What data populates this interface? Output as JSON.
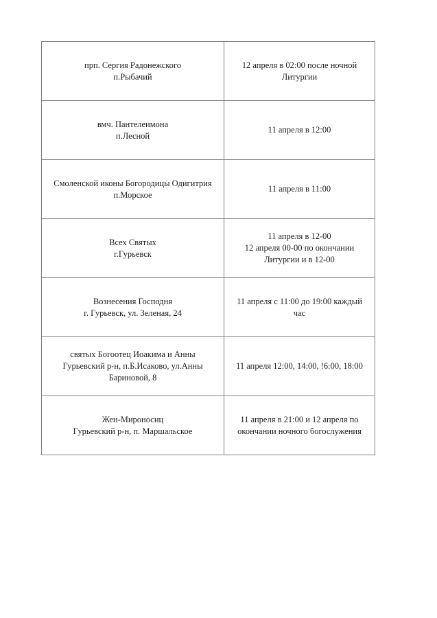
{
  "page": {
    "background_color": "#ffffff",
    "text_color": "#1f1f1f"
  },
  "table": {
    "border_color": "#7f7f7f",
    "rows": [
      {
        "church_lines": [
          "прп. Сергия Радонежского",
          "п.Рыбачий"
        ],
        "time_lines": [
          "12 апреля в 02:00 после ночной",
          "Литургии"
        ]
      },
      {
        "church_lines": [
          "вмч. Пантелеимона",
          "п.Лесной"
        ],
        "time_lines": [
          "11 апреля в 12:00"
        ]
      },
      {
        "church_lines": [
          "Смоленской иконы Богородицы Одигитрия",
          "п.Морское"
        ],
        "time_lines": [
          "11 апреля в 11:00"
        ]
      },
      {
        "church_lines": [
          "Всех Святых",
          "г.Гурьевск"
        ],
        "time_lines": [
          "11 апреля в 12-00",
          "12 апреля 00-00 по окончании",
          "Литургии и в 12-00"
        ]
      },
      {
        "church_lines": [
          "Вознесения Господня",
          "г. Гурьевск, ул. Зеленая, 24"
        ],
        "time_lines": [
          "11 апреля с 11:00 до 19:00 каждый",
          "час"
        ]
      },
      {
        "church_lines": [
          "святых Богоотец Иоакима и Анны",
          "Гурьевский р-н, п.Б.Исаково, ул.Анны",
          "Бариновой, 8"
        ],
        "time_lines": [
          "11 апреля 12:00, 14:00, !6:00, 18:00"
        ]
      },
      {
        "church_lines": [
          "Жен-Мироносиц",
          "Гурьевский р-н, п. Маршальское"
        ],
        "time_lines": [
          "11 апреля в 21:00 и 12 апреля по",
          "окончании ночного богослужения"
        ]
      }
    ]
  }
}
